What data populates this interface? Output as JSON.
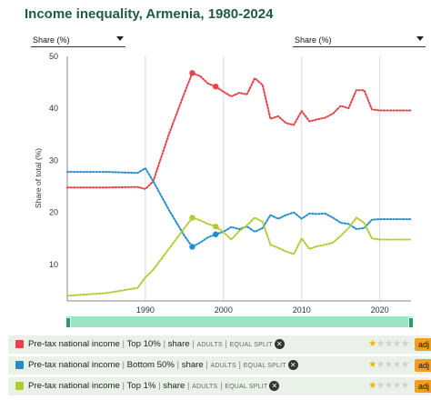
{
  "title": "Income inequality, Armenia, 1980-2024",
  "dropdowns": {
    "left": "Share (%)",
    "right": "Share (%)"
  },
  "chart_data": {
    "type": "line",
    "title": "Income inequality, Armenia, 1980-2024",
    "ylabel": "Share of total (%)",
    "xlim": [
      1980,
      2024
    ],
    "ylim": [
      3,
      50
    ],
    "xticks": [
      1990,
      2000,
      2010,
      2020
    ],
    "yticks": [
      10,
      20,
      30,
      40,
      50
    ],
    "grid": "vertical",
    "series": [
      {
        "name": "Pre-tax national income | Top 10% | share",
        "color": "#e8414a",
        "points": [
          [
            1980,
            24.8
          ],
          [
            1985,
            24.8
          ],
          [
            1989,
            24.9
          ],
          [
            1990,
            24.5
          ],
          [
            1991,
            26.0
          ],
          [
            1993,
            35.0
          ],
          [
            1995,
            43.0
          ],
          [
            1996,
            46.8
          ],
          [
            1997,
            46.2
          ],
          [
            1998,
            44.8
          ],
          [
            1999,
            44.2
          ],
          [
            2000,
            43.2
          ],
          [
            2001,
            42.3
          ],
          [
            2002,
            43.0
          ],
          [
            2003,
            42.7
          ],
          [
            2004,
            45.8
          ],
          [
            2005,
            44.5
          ],
          [
            2006,
            38.0
          ],
          [
            2007,
            38.5
          ],
          [
            2008,
            37.2
          ],
          [
            2009,
            36.8
          ],
          [
            2010,
            39.5
          ],
          [
            2011,
            37.5
          ],
          [
            2012,
            37.9
          ],
          [
            2013,
            38.2
          ],
          [
            2014,
            39.0
          ],
          [
            2015,
            40.5
          ],
          [
            2016,
            40.0
          ],
          [
            2017,
            43.5
          ],
          [
            2018,
            43.5
          ],
          [
            2019,
            39.8
          ],
          [
            2020,
            39.6
          ],
          [
            2024,
            39.6
          ]
        ],
        "markers": [
          1996,
          1999
        ]
      },
      {
        "name": "Pre-tax national income | Bottom 50% | share",
        "color": "#1f8fd0",
        "points": [
          [
            1980,
            27.8
          ],
          [
            1985,
            27.8
          ],
          [
            1989,
            27.6
          ],
          [
            1990,
            28.5
          ],
          [
            1991,
            26.0
          ],
          [
            1993,
            20.5
          ],
          [
            1995,
            15.5
          ],
          [
            1996,
            13.4
          ],
          [
            1997,
            14.2
          ],
          [
            1998,
            15.2
          ],
          [
            1999,
            15.8
          ],
          [
            2000,
            16.3
          ],
          [
            2001,
            17.2
          ],
          [
            2002,
            16.8
          ],
          [
            2003,
            17.3
          ],
          [
            2004,
            16.3
          ],
          [
            2005,
            17.0
          ],
          [
            2006,
            19.5
          ],
          [
            2007,
            18.8
          ],
          [
            2008,
            19.5
          ],
          [
            2009,
            20.0
          ],
          [
            2010,
            18.8
          ],
          [
            2011,
            19.8
          ],
          [
            2012,
            19.7
          ],
          [
            2013,
            19.8
          ],
          [
            2014,
            19.0
          ],
          [
            2015,
            18.0
          ],
          [
            2016,
            17.8
          ],
          [
            2017,
            16.8
          ],
          [
            2018,
            17.0
          ],
          [
            2019,
            18.6
          ],
          [
            2020,
            18.7
          ],
          [
            2024,
            18.7
          ]
        ],
        "markers": [
          1996,
          1999
        ]
      },
      {
        "name": "Pre-tax national income | Top 1% | share",
        "color": "#b5c932",
        "points": [
          [
            1980,
            4.0
          ],
          [
            1985,
            4.5
          ],
          [
            1989,
            5.5
          ],
          [
            1990,
            7.5
          ],
          [
            1991,
            9.0
          ],
          [
            1993,
            13.0
          ],
          [
            1995,
            17.0
          ],
          [
            1996,
            19.0
          ],
          [
            1997,
            18.5
          ],
          [
            1998,
            17.8
          ],
          [
            1999,
            17.3
          ],
          [
            2000,
            16.2
          ],
          [
            2001,
            14.8
          ],
          [
            2002,
            16.4
          ],
          [
            2003,
            17.5
          ],
          [
            2004,
            19.0
          ],
          [
            2005,
            18.2
          ],
          [
            2006,
            13.8
          ],
          [
            2007,
            13.2
          ],
          [
            2008,
            12.5
          ],
          [
            2009,
            12.0
          ],
          [
            2010,
            15.0
          ],
          [
            2011,
            13.0
          ],
          [
            2012,
            13.5
          ],
          [
            2013,
            13.8
          ],
          [
            2014,
            14.2
          ],
          [
            2015,
            15.5
          ],
          [
            2016,
            17.0
          ],
          [
            2017,
            19.0
          ],
          [
            2018,
            18.0
          ],
          [
            2019,
            15.0
          ],
          [
            2020,
            14.8
          ],
          [
            2024,
            14.8
          ]
        ],
        "markers": [
          1996,
          1999
        ]
      }
    ]
  },
  "legend": [
    {
      "prefix": "Pre-tax national income",
      "group": "Top 10%",
      "measure": "share",
      "tag1": "ADULTS",
      "tag2": "EQUAL SPLIT",
      "stars": 1,
      "stars_total": 5,
      "button": "adj",
      "color": "#e8414a"
    },
    {
      "prefix": "Pre-tax national income",
      "group": "Bottom 50%",
      "measure": "share",
      "tag1": "ADULTS",
      "tag2": "EQUAL SPLIT",
      "stars": 1,
      "stars_total": 5,
      "button": "adj",
      "color": "#1f8fd0"
    },
    {
      "prefix": "Pre-tax national income",
      "group": "Top 1%",
      "measure": "share",
      "tag1": "ADULTS",
      "tag2": "EQUAL SPLIT",
      "stars": 1,
      "stars_total": 5,
      "button": "adj",
      "color": "#b5c932"
    }
  ],
  "icons": {
    "remove": "close-circle-icon",
    "rating": "star-icon",
    "dropdown": "chevron-down-icon",
    "slider_handle": "drag-handle-icon"
  }
}
